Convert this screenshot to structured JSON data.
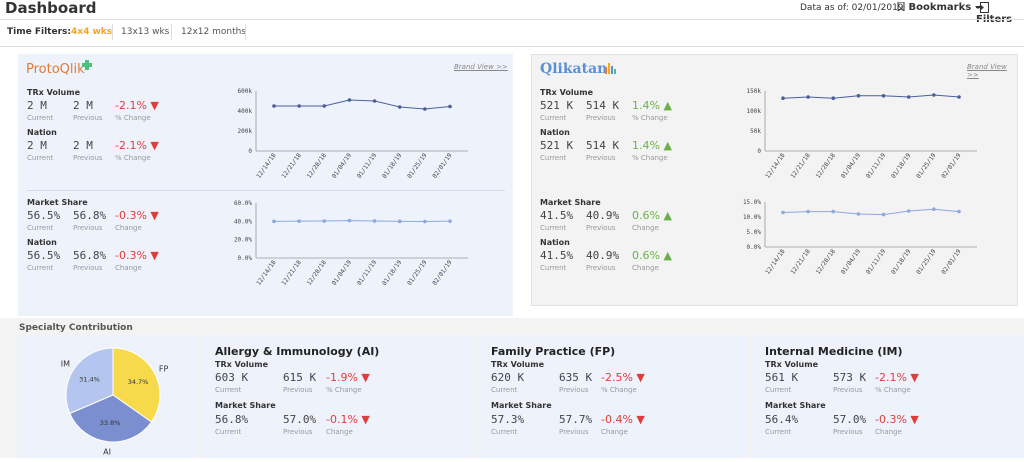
{
  "header": {
    "title": "Dashboard",
    "data_as_of": "Data as of: 02/01/2019",
    "bookmarks": "Bookmarks",
    "filters": "Filters"
  },
  "time_filters": {
    "label": "Time Filters:",
    "options": [
      "4x4 wks",
      "13x13 wks",
      "12x12 months"
    ],
    "selected": "4x4 wks"
  },
  "left_panel": {
    "brand": "ProtoQlik",
    "brand_view": "Brand View >>",
    "trx": {
      "title": "TRx Volume",
      "current": "2 M",
      "previous": "2 M",
      "change": "-2.1%",
      "nation_title": "Nation",
      "nation_current": "2 M",
      "nation_previous": "2 M",
      "nation_change": "-2.1%"
    },
    "share": {
      "title": "Market Share",
      "current": "56.5%",
      "previous": "56.8%",
      "change": "-0.3%",
      "nation_title": "Nation",
      "nation_current": "56.5%",
      "nation_previous": "56.8%",
      "nation_change": "-0.3%"
    }
  },
  "right_panel": {
    "brand": "Qlikatan",
    "brand_view": "Brand View >>",
    "trx": {
      "title": "TRx Volume",
      "current": "521 K",
      "previous": "514 K",
      "change": "1.4%",
      "nation_title": "Nation",
      "nation_current": "521 K",
      "nation_previous": "514 K",
      "nation_change": "1.4%"
    },
    "share": {
      "title": "Market Share",
      "current": "41.5%",
      "previous": "40.9%",
      "change": "0.6%",
      "nation_title": "Nation",
      "nation_current": "41.5%",
      "nation_previous": "40.9%",
      "nation_change": "0.6%"
    }
  },
  "labels": {
    "current": "Current",
    "previous": "Previous",
    "pct_change": "% Change",
    "change": "Change"
  },
  "specialty": {
    "title": "Specialty Contribution",
    "cards": [
      {
        "name": "Allergy & Immunology (AI)",
        "trx_title": "TRx Volume",
        "trx_current": "603 K",
        "trx_previous": "615 K",
        "trx_change": "-1.9%",
        "share_title": "Market Share",
        "share_current": "56.8%",
        "share_previous": "57.0%",
        "share_change": "-0.1%"
      },
      {
        "name": "Family Practice (FP)",
        "trx_title": "TRx Volume",
        "trx_current": "620 K",
        "trx_previous": "635 K",
        "trx_change": "-2.5%",
        "share_title": "Market Share",
        "share_current": "57.3%",
        "share_previous": "57.7%",
        "share_change": "-0.4%"
      },
      {
        "name": "Internal Medicine (IM)",
        "trx_title": "TRx Volume",
        "trx_current": "561 K",
        "trx_previous": "573 K",
        "trx_change": "-2.1%",
        "share_title": "Market Share",
        "share_current": "56.4%",
        "share_previous": "57.0%",
        "share_change": "-0.3%"
      }
    ]
  },
  "colors": {
    "accent_orange": "#f5a623",
    "negative": "#e03c3c",
    "positive": "#6ab04c",
    "line_dark": "#4a5f9a",
    "line_light": "#8ea8e0",
    "pie_im": "#b4c6ef",
    "pie_fp": "#f7d94c",
    "pie_ai": "#7b8fd0"
  },
  "chart_data": [
    {
      "type": "line",
      "x": [
        "12/14/18",
        "12/21/18",
        "12/28/18",
        "01/04/19",
        "01/11/19",
        "01/18/19",
        "01/25/19",
        "02/01/19"
      ],
      "y": [
        450000,
        450000,
        450000,
        510000,
        500000,
        440000,
        420000,
        445000
      ],
      "ylim": [
        0,
        600000
      ],
      "yticks": [
        "0",
        "200k",
        "400k",
        "600k"
      ],
      "grid": false
    },
    {
      "type": "line",
      "x": [
        "12/14/18",
        "12/21/18",
        "12/28/18",
        "01/04/19",
        "01/11/19",
        "01/18/19",
        "01/25/19",
        "02/01/19"
      ],
      "y": [
        40.0,
        40.2,
        40.3,
        40.8,
        40.4,
        40.0,
        39.8,
        40.2
      ],
      "ylim": [
        0,
        60
      ],
      "yticks": [
        "0.0%",
        "20.0%",
        "40.0%",
        "60.0%"
      ],
      "grid": false
    },
    {
      "type": "line",
      "x": [
        "12/14/18",
        "12/21/18",
        "12/28/18",
        "01/04/19",
        "01/11/19",
        "01/18/19",
        "01/25/19",
        "02/01/19"
      ],
      "y": [
        132000,
        135000,
        132000,
        138000,
        138000,
        135000,
        140000,
        135000
      ],
      "ylim": [
        0,
        150000
      ],
      "yticks": [
        "0",
        "50k",
        "100k",
        "150k"
      ],
      "grid": false
    },
    {
      "type": "line",
      "x": [
        "12/14/18",
        "12/21/18",
        "12/28/18",
        "01/04/19",
        "01/11/19",
        "01/18/19",
        "01/25/19",
        "02/01/19"
      ],
      "y": [
        11.5,
        11.8,
        11.8,
        11.0,
        10.8,
        12.0,
        12.6,
        11.8
      ],
      "ylim": [
        0,
        15
      ],
      "yticks": [
        "0.0%",
        "5.0%",
        "10.0%",
        "15.0%"
      ],
      "grid": false
    },
    {
      "type": "pie",
      "labels": [
        "IM",
        "FP",
        "AI"
      ],
      "values": [
        31.4,
        34.7,
        33.8
      ],
      "data_labels": [
        "31.4%",
        "34.7%",
        "33.8%"
      ]
    }
  ]
}
